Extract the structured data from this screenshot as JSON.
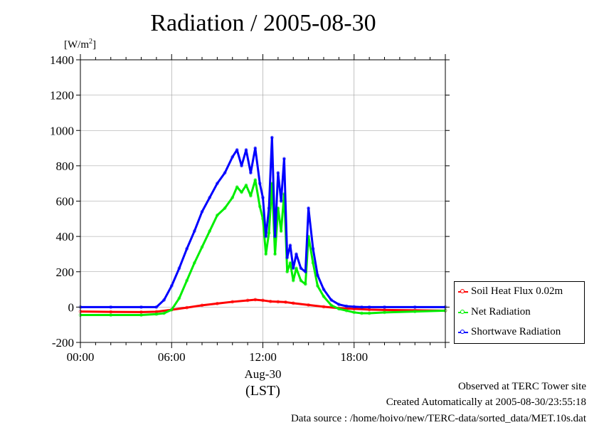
{
  "header": {
    "title": "Radiation / 2005-08-30",
    "unit_label": "[W/m",
    "unit_sup": "2",
    "unit_close": "]"
  },
  "footer": {
    "line1": "Observed at TERC Tower site",
    "line2": "Created Automatically at 2005-08-30/23:55:18",
    "line3": "Data source : /home/hoivo/new/TERC-data/sorted_data/MET.10s.dat"
  },
  "chart_data": {
    "type": "line",
    "title": "Radiation / 2005-08-30",
    "ylabel": "[W/m2]",
    "xlabel": "(LST)",
    "date_label": "Aug-30",
    "xlim": [
      0,
      24
    ],
    "ylim": [
      -200,
      1400
    ],
    "x_ticks": [
      0,
      6,
      12,
      18
    ],
    "x_tick_labels": [
      "00:00",
      "06:00",
      "12:00",
      "18:00"
    ],
    "y_ticks": [
      -200,
      0,
      200,
      400,
      600,
      800,
      1000,
      1200,
      1400
    ],
    "y_tick_labels": [
      "-200",
      "0",
      "200",
      "400",
      "600",
      "800",
      "1000",
      "1200",
      "1400"
    ],
    "grid": true,
    "legend_position": "right",
    "series": [
      {
        "name": "Soil Heat Flux 0.02m",
        "color": "#ff0000",
        "x": [
          0,
          2,
          4,
          5,
          6,
          7,
          8,
          9,
          10,
          11,
          11.5,
          12,
          12.5,
          13,
          13.5,
          14,
          15,
          16,
          17,
          18,
          19,
          20,
          22,
          24
        ],
        "y": [
          -25,
          -27,
          -28,
          -26,
          -15,
          -3,
          10,
          20,
          30,
          38,
          42,
          38,
          32,
          30,
          28,
          22,
          12,
          2,
          -6,
          -10,
          -14,
          -16,
          -18,
          -20
        ]
      },
      {
        "name": "Net Radiation",
        "color": "#00ee00",
        "x": [
          0,
          2,
          4,
          5,
          5.5,
          6,
          6.5,
          7,
          7.5,
          8,
          8.5,
          9,
          9.5,
          10,
          10.3,
          10.6,
          10.9,
          11.2,
          11.5,
          11.8,
          12,
          12.2,
          12.4,
          12.6,
          12.8,
          13.0,
          13.2,
          13.4,
          13.6,
          13.8,
          14.0,
          14.2,
          14.5,
          14.8,
          15.0,
          15.3,
          15.6,
          16,
          16.5,
          17,
          17.5,
          18,
          18.5,
          19,
          20,
          22,
          24
        ],
        "y": [
          -45,
          -45,
          -45,
          -40,
          -35,
          -15,
          50,
          150,
          250,
          340,
          430,
          520,
          560,
          620,
          680,
          650,
          690,
          630,
          720,
          570,
          500,
          300,
          420,
          700,
          300,
          560,
          430,
          640,
          200,
          250,
          150,
          220,
          150,
          130,
          400,
          250,
          120,
          60,
          10,
          -10,
          -20,
          -30,
          -35,
          -35,
          -30,
          -25,
          -20
        ]
      },
      {
        "name": "Shortwave Radiation",
        "color": "#0000ff",
        "x": [
          0,
          2,
          4,
          5,
          5.5,
          6,
          6.5,
          7,
          7.5,
          8,
          8.5,
          9,
          9.5,
          10,
          10.3,
          10.6,
          10.9,
          11.2,
          11.5,
          11.8,
          12,
          12.2,
          12.4,
          12.6,
          12.8,
          13.0,
          13.2,
          13.4,
          13.6,
          13.8,
          14.0,
          14.2,
          14.5,
          14.8,
          15.0,
          15.3,
          15.6,
          16,
          16.5,
          17,
          17.5,
          18,
          18.5,
          19,
          20,
          22,
          24
        ],
        "y": [
          0,
          0,
          0,
          0,
          40,
          120,
          220,
          330,
          430,
          540,
          620,
          700,
          760,
          850,
          890,
          800,
          890,
          760,
          900,
          700,
          620,
          400,
          560,
          960,
          400,
          760,
          600,
          840,
          280,
          350,
          220,
          300,
          220,
          200,
          560,
          330,
          180,
          100,
          40,
          15,
          5,
          2,
          0,
          0,
          0,
          0,
          0
        ]
      }
    ]
  }
}
